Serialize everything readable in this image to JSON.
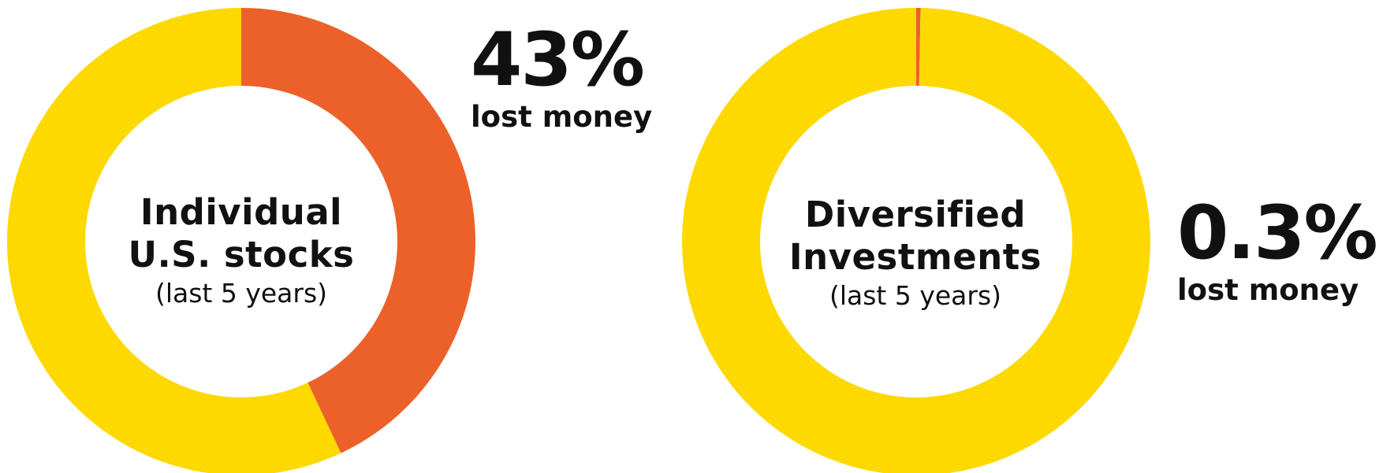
{
  "colors": {
    "lost": "#EC612A",
    "other": "#FDD900",
    "text": "#111111"
  },
  "chart_data": [
    {
      "type": "pie",
      "donut": true,
      "center_label": {
        "line1": "Individual",
        "line2": "U.S. stocks",
        "sub": "(last 5 years)"
      },
      "slices": [
        {
          "label": "lost money",
          "value": 43,
          "color": "#EC612A"
        },
        {
          "label": "",
          "value": 57,
          "color": "#FDD900"
        }
      ],
      "callout": {
        "value": "43%",
        "text": "lost money"
      }
    },
    {
      "type": "pie",
      "donut": true,
      "center_label": {
        "line1": "Diversified",
        "line2": "Investments",
        "sub": "(last 5 years)"
      },
      "slices": [
        {
          "label": "lost money",
          "value": 0.3,
          "color": "#EC612A"
        },
        {
          "label": "",
          "value": 99.7,
          "color": "#FDD900"
        }
      ],
      "callout": {
        "value": "0.3%",
        "text": "lost money"
      }
    }
  ]
}
